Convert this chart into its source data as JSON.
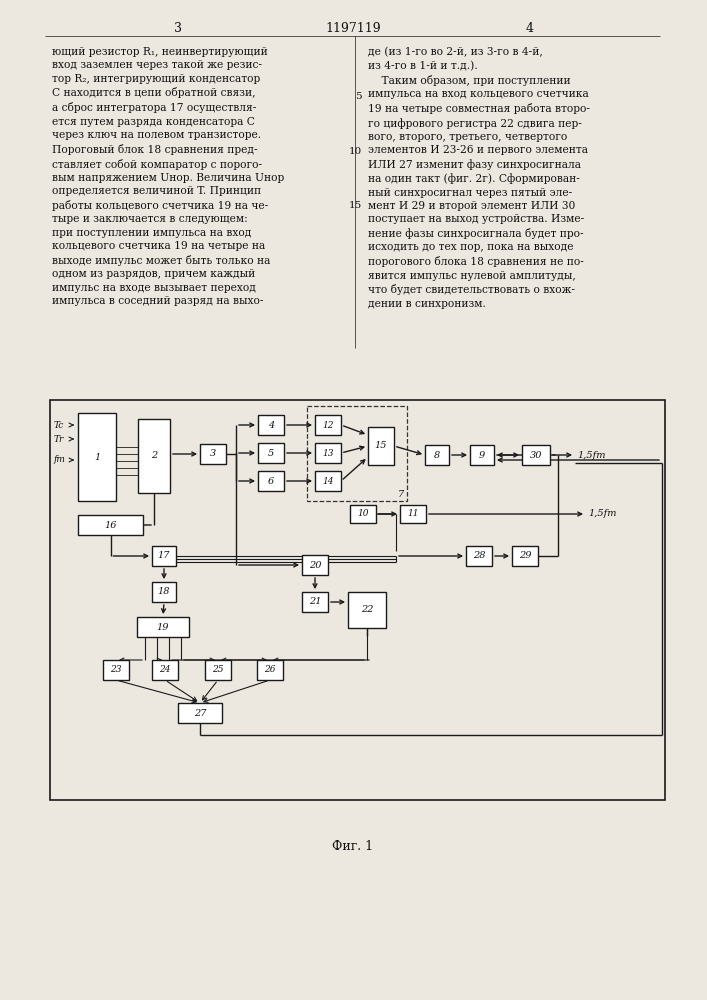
{
  "bg": "#ece8e0",
  "fg": "#111111",
  "fig_caption": "Фиг. 1",
  "page_num_left": "3",
  "patent_num": "1197119",
  "page_num_right": "4",
  "output_label": "1,5fт",
  "left_col_text": "ющий резистор R₁, неинвертирующий\nвход заземлен через такой же резис-\nтор R₂, интегрирующий конденсатор\nС находится в цепи обратной связи,\nа сброс интегратора 17 осуществля-\nется путем разряда конденсатора С\nчерез ключ на полевом транзисторе.\nПороговый блок 18 сравнения пред-\nставляет собой компаратор с порого-\nвым напряжением Uнор. Величина Uнор\nопределяется величиной T. Принцип\nработы кольцевого счетчика 19 на че-\nтыре и заключается в следующем:\nпри поступлении импульса на вход\nкольцевого счетчика 19 на четыре на\nвыходе импульс может быть только на\nодном из разрядов, причем каждый\nимпульс на входе вызывает переход\nимпульса в соседний разряд на выхо-",
  "right_col_text": "де (из 1-го во 2-й, из 3-го в 4-й,\nиз 4-го в 1-й и т.д.).\n    Таким образом, при поступлении\nимпульса на вход кольцевого счетчика\n19 на четыре совместная работа второ-\nго цифрового регистра 22 сдвига пер-\nвого, второго, третьего, четвертого\nэлементов И 23-26 и первого элемента\nИЛИ 27 изменит фазу синхросигнала\nна один такт (фиг. 2г). Сформирован-\nный синхросигнал через пятый эле-\nмент И 29 и второй элемент ИЛИ 30\nпоступает на выход устройства. Изме-\nнение фазы синхросигнала будет про-\nисходить до тех пор, пока на выходе\nпорогового блока 18 сравнения не по-\nявится импульс нулевой амплитуды,\nчто будет свидетельствовать о вхож-\nдении в синхронизм."
}
